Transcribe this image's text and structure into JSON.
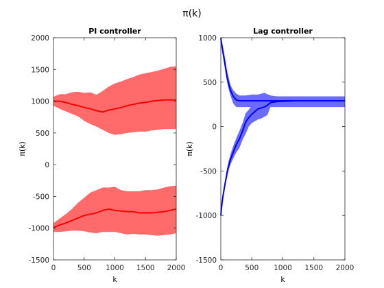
{
  "figure_title": "π(k)",
  "chart_data": [
    {
      "type": "area",
      "title": "PI controller",
      "xlabel": "k",
      "ylabel": "π(k)",
      "xlim": [
        0,
        2000
      ],
      "ylim": [
        -1500,
        2000
      ],
      "xticks": [
        0,
        500,
        1000,
        1500,
        2000
      ],
      "yticks": [
        -1500,
        -1000,
        -500,
        0,
        500,
        1000,
        1500,
        2000
      ],
      "grid": false,
      "legend": "none",
      "colors": {
        "line": "#ff0000",
        "band": "#ff6b6b"
      },
      "series": [
        {
          "x": [
            0,
            100,
            200,
            300,
            400,
            500,
            600,
            700,
            800,
            900,
            1000,
            1100,
            1200,
            1300,
            1400,
            1500,
            1600,
            1700,
            1800,
            1900,
            2000
          ],
          "mean": [
            1000,
            1000,
            980,
            950,
            930,
            900,
            880,
            850,
            830,
            860,
            880,
            900,
            930,
            950,
            970,
            980,
            1000,
            1010,
            1020,
            1020,
            1020
          ],
          "upper": [
            1070,
            1110,
            1110,
            1140,
            1150,
            1130,
            1140,
            1100,
            1160,
            1230,
            1280,
            1310,
            1350,
            1380,
            1420,
            1440,
            1460,
            1480,
            1510,
            1540,
            1550
          ],
          "lower": [
            930,
            880,
            840,
            800,
            760,
            690,
            640,
            600,
            550,
            500,
            470,
            480,
            500,
            510,
            520,
            520,
            540,
            550,
            560,
            560,
            560
          ]
        },
        {
          "x": [
            0,
            100,
            200,
            300,
            400,
            500,
            600,
            700,
            800,
            900,
            1000,
            1100,
            1200,
            1300,
            1400,
            1500,
            1600,
            1700,
            1800,
            1900,
            2000
          ],
          "mean": [
            -990,
            -950,
            -920,
            -880,
            -840,
            -800,
            -780,
            -760,
            -720,
            -700,
            -720,
            -730,
            -740,
            -740,
            -760,
            -760,
            -760,
            -750,
            -740,
            -720,
            -700
          ],
          "upper": [
            -920,
            -850,
            -780,
            -700,
            -600,
            -520,
            -440,
            -400,
            -360,
            -360,
            -350,
            -400,
            -420,
            -420,
            -420,
            -400,
            -400,
            -390,
            -360,
            -340,
            -330
          ],
          "lower": [
            -1060,
            -1060,
            -1050,
            -1040,
            -1040,
            -1050,
            -1070,
            -1080,
            -1060,
            -1060,
            -1060,
            -1080,
            -1100,
            -1090,
            -1100,
            -1100,
            -1110,
            -1120,
            -1110,
            -1100,
            -1080
          ]
        }
      ]
    },
    {
      "type": "area",
      "title": "Lag controller",
      "xlabel": "k",
      "ylabel": "π(k)",
      "xlim": [
        0,
        2000
      ],
      "ylim": [
        -1500,
        1000
      ],
      "xticks": [
        0,
        500,
        1000,
        1500,
        2000
      ],
      "yticks": [
        -1500,
        -1000,
        -500,
        0,
        500,
        1000
      ],
      "grid": false,
      "legend": "none",
      "colors": {
        "line": "#0000ff",
        "band": "#6b6bff"
      },
      "series": [
        {
          "x": [
            0,
            20,
            40,
            60,
            80,
            100,
            130,
            160,
            200,
            250,
            300,
            400,
            500,
            600,
            700,
            800,
            900,
            1000,
            1200,
            1400,
            1600,
            1800,
            2000
          ],
          "mean": [
            1000,
            900,
            820,
            740,
            650,
            560,
            470,
            400,
            340,
            300,
            290,
            290,
            290,
            290,
            290,
            290,
            290,
            290,
            290,
            290,
            290,
            290,
            290
          ],
          "upper": [
            1000,
            950,
            880,
            800,
            720,
            630,
            540,
            460,
            410,
            370,
            350,
            350,
            360,
            360,
            380,
            350,
            340,
            340,
            340,
            340,
            340,
            340,
            340
          ],
          "lower": [
            1000,
            850,
            760,
            680,
            590,
            500,
            410,
            340,
            260,
            220,
            220,
            220,
            220,
            220,
            220,
            220,
            220,
            220,
            220,
            220,
            220,
            220,
            220
          ]
        },
        {
          "x": [
            0,
            20,
            40,
            60,
            80,
            100,
            130,
            160,
            200,
            250,
            300,
            350,
            400,
            450,
            500,
            550,
            600,
            650,
            700,
            750,
            800,
            900,
            1000,
            1200,
            1400,
            1600,
            1800,
            2000
          ],
          "mean": [
            -1000,
            -860,
            -760,
            -680,
            -600,
            -520,
            -430,
            -360,
            -290,
            -200,
            -140,
            -50,
            50,
            100,
            140,
            170,
            200,
            210,
            220,
            240,
            270,
            280,
            285,
            290,
            290,
            290,
            290,
            290
          ],
          "upper": [
            -1000,
            -840,
            -730,
            -640,
            -560,
            -470,
            -380,
            -300,
            -220,
            -130,
            -50,
            40,
            150,
            190,
            240,
            270,
            310,
            340,
            330,
            340,
            320,
            320,
            330,
            340,
            340,
            340,
            340,
            340
          ],
          "lower": [
            -1000,
            -880,
            -790,
            -720,
            -640,
            -570,
            -480,
            -420,
            -360,
            -290,
            -240,
            -150,
            -80,
            0,
            40,
            60,
            80,
            90,
            110,
            130,
            220,
            240,
            240,
            240,
            240,
            240,
            240,
            240
          ]
        }
      ]
    }
  ]
}
